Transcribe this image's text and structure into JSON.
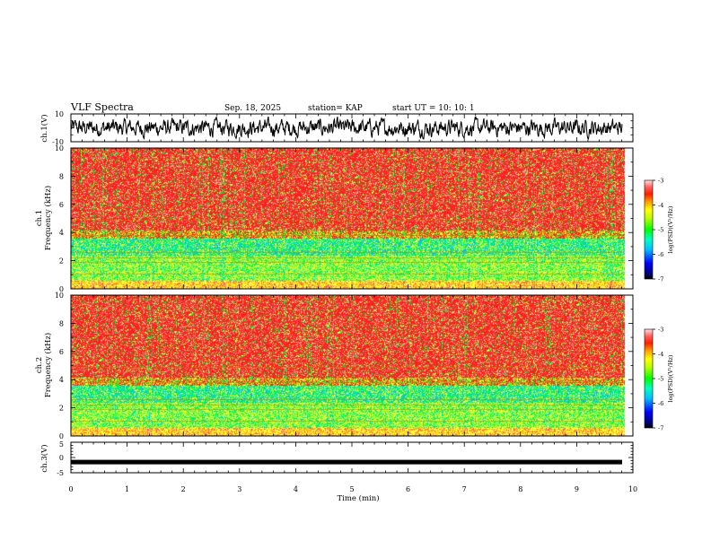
{
  "header": {
    "title": "VLF Spectra",
    "date": "Sep. 18, 2025",
    "station": "station= KAP",
    "start_ut": "start  UT =   10: 10: 1"
  },
  "chart_data": [
    {
      "type": "line",
      "id": "ch1-waveform",
      "ylabel": "ch.1(V)",
      "ylim": [
        -10,
        10
      ],
      "ytick_labels": [
        "10",
        "-10"
      ],
      "xlim": [
        0,
        10
      ],
      "description_values": "noisy waveform oscillating roughly between -7 and 7 V"
    },
    {
      "type": "heatmap",
      "id": "ch1-spectrogram",
      "ylabel": "ch.1\nFrequency (kHz)",
      "ylabel_line1": "ch.1",
      "ylabel_line2": "Frequency  (kHz)",
      "ylim": [
        0,
        10
      ],
      "ytick_labels": [
        "0",
        "2",
        "4",
        "6",
        "8",
        "10"
      ],
      "xlim": [
        0,
        9.85
      ],
      "colorbar": {
        "label": "log(PSD)(V²/Hz)",
        "range": [
          -7,
          -3
        ],
        "tick_labels": [
          "-3",
          "-4",
          "-5",
          "-6",
          "-7"
        ]
      }
    },
    {
      "type": "heatmap",
      "id": "ch2-spectrogram",
      "ylabel_line1": "ch.2",
      "ylabel_line2": "Frequency  (kHz)",
      "ylim": [
        0,
        10
      ],
      "ytick_labels": [
        "0",
        "2",
        "4",
        "6",
        "8",
        "10"
      ],
      "xlim": [
        0,
        9.85
      ],
      "colorbar": {
        "label": "log(PSD)(V²/Hz)",
        "range": [
          -7,
          -3
        ],
        "tick_labels": [
          "-3",
          "-4",
          "-5",
          "-6",
          "-7"
        ]
      }
    },
    {
      "type": "line",
      "id": "ch3-waveform",
      "ylabel": "ch.3(V)",
      "ylim": [
        -5,
        5
      ],
      "ytick_labels": [
        "5",
        "0",
        "-5"
      ],
      "xlim": [
        0,
        10
      ],
      "values_constant": -1.5,
      "xlabel": "Time  (min)",
      "xtick_labels": [
        "0",
        "1",
        "2",
        "3",
        "4",
        "5",
        "6",
        "7",
        "8",
        "9",
        "10"
      ]
    }
  ],
  "colors": {
    "waveform": "#000000",
    "frame": "#000000",
    "background": "#ffffff"
  }
}
